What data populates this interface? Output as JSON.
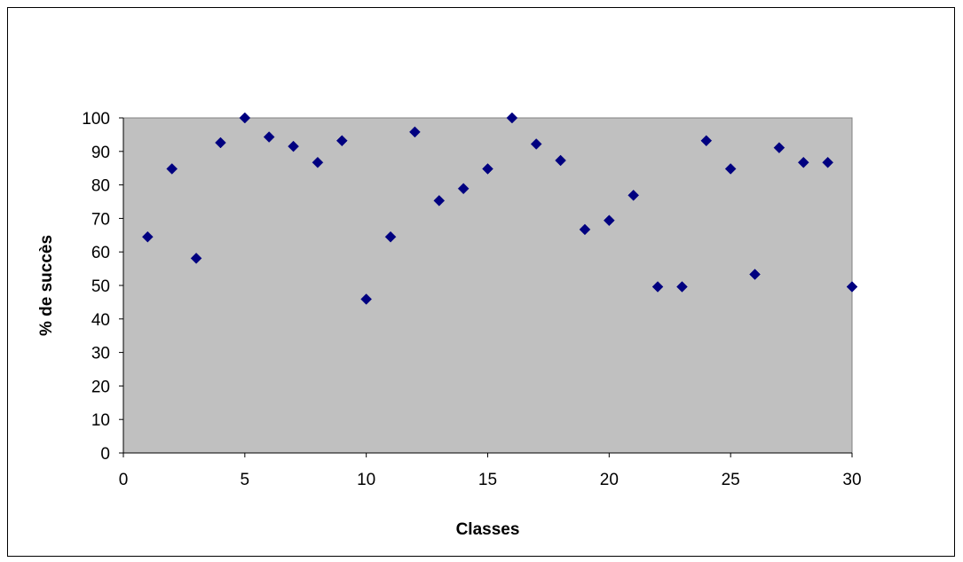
{
  "chart_data": {
    "type": "scatter",
    "title": "",
    "xlabel": "Classes",
    "ylabel": "% de succès",
    "xlim": [
      0,
      30
    ],
    "ylim": [
      0,
      100
    ],
    "xticks": [
      0,
      5,
      10,
      15,
      20,
      25,
      30
    ],
    "yticks": [
      0,
      10,
      20,
      30,
      40,
      50,
      60,
      70,
      80,
      90,
      100
    ],
    "grid": false,
    "legend": "none",
    "plot_background": "#c0c0c0",
    "marker": "diamond",
    "marker_color": "#000080",
    "series": [
      {
        "x": [
          1,
          2,
          3,
          4,
          5,
          6,
          7,
          8,
          9,
          10,
          11,
          12,
          13,
          14,
          15,
          16,
          17,
          18,
          19,
          20,
          21,
          22,
          23,
          24,
          25,
          26,
          27,
          28,
          29,
          30
        ],
        "y": [
          64.5,
          84.8,
          58.1,
          92.6,
          100,
          94.3,
          91.5,
          86.7,
          93.2,
          45.9,
          64.5,
          95.8,
          75.3,
          78.9,
          84.8,
          100,
          92.2,
          87.3,
          66.7,
          69.4,
          76.9,
          49.6,
          49.6,
          93.2,
          84.8,
          53.3,
          91.1,
          86.7,
          86.7,
          49.6
        ]
      }
    ]
  }
}
